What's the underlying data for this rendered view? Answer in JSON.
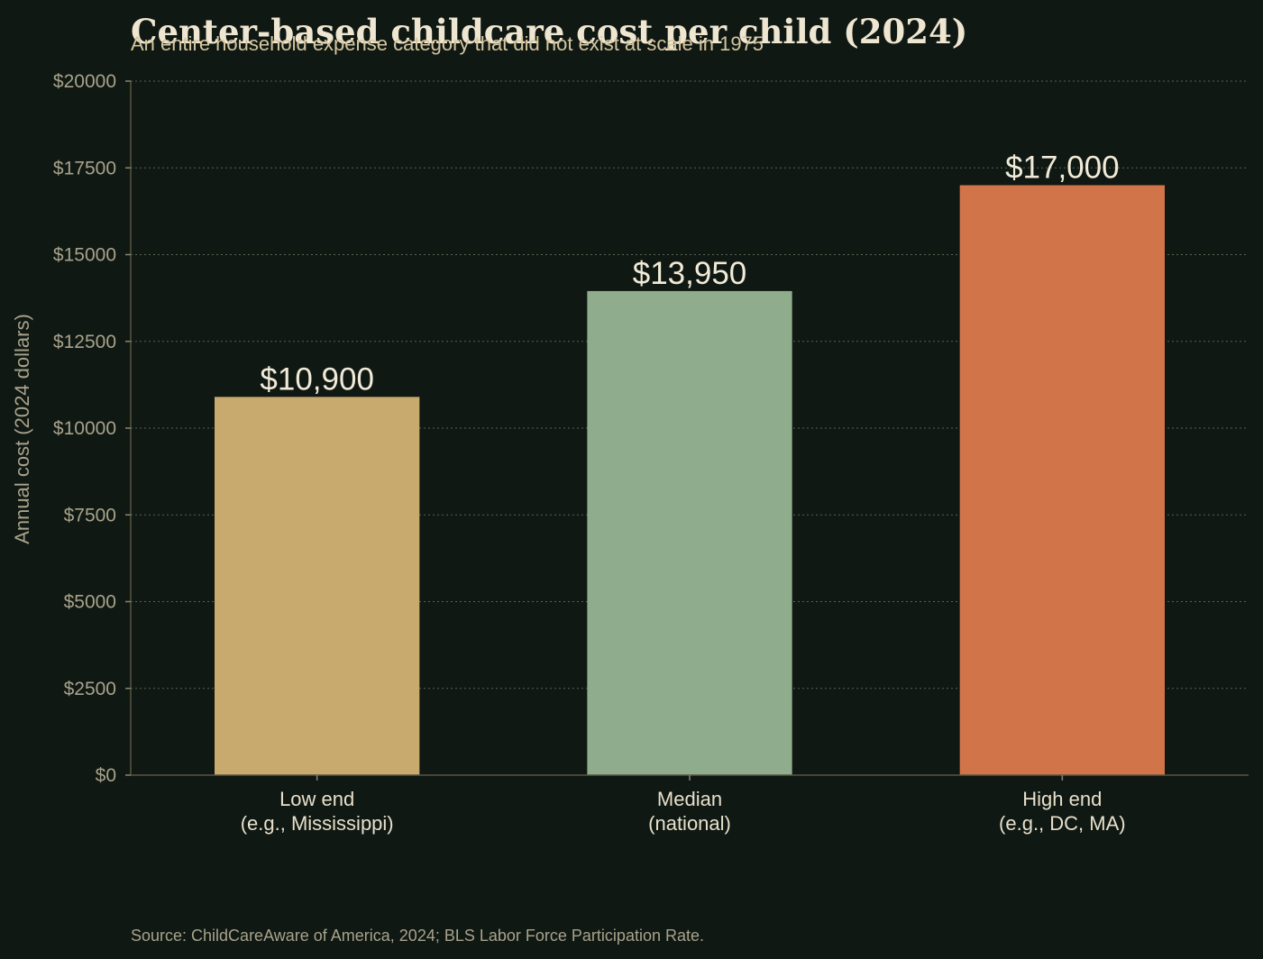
{
  "chart_data": {
    "type": "bar",
    "title": "Center-based childcare cost per child (2024)",
    "subtitle": "An entire household expense category that did not exist at scale in 1975",
    "categories": [
      [
        "Low end",
        "(e.g., Mississippi)"
      ],
      [
        "Median",
        "(national)"
      ],
      [
        "High end",
        "(e.g., DC, MA)"
      ]
    ],
    "values": [
      10900,
      13950,
      17000
    ],
    "value_labels": [
      "$10,900",
      "$13,950",
      "$17,000"
    ],
    "colors": [
      "#c8aa6e",
      "#8fac8c",
      "#d2744a"
    ],
    "ylabel": "Annual cost (2024 dollars)",
    "ylim": [
      0,
      20000
    ],
    "yticks": [
      0,
      2500,
      5000,
      7500,
      10000,
      12500,
      15000,
      17500,
      20000
    ],
    "ytick_labels": [
      "$0",
      "$2500",
      "$5000",
      "$7500",
      "$10000",
      "$12500",
      "$15000",
      "$17500",
      "$20000"
    ],
    "grid": true,
    "source": "Source: ChildCareAware of America, 2024; BLS Labor Force Participation Rate."
  }
}
